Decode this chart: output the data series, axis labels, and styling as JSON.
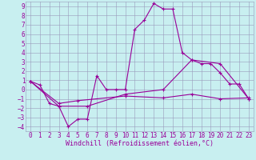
{
  "title": "",
  "xlabel": "Windchill (Refroidissement éolien,°C)",
  "bg_color": "#c8eff0",
  "grid_color": "#9999bb",
  "line_color": "#990099",
  "xlim": [
    -0.5,
    23.5
  ],
  "ylim": [
    -4.5,
    9.5
  ],
  "xticks": [
    0,
    1,
    2,
    3,
    4,
    5,
    6,
    7,
    8,
    9,
    10,
    11,
    12,
    13,
    14,
    15,
    16,
    17,
    18,
    19,
    20,
    21,
    22,
    23
  ],
  "yticks": [
    -4,
    -3,
    -2,
    -1,
    0,
    1,
    2,
    3,
    4,
    5,
    6,
    7,
    8,
    9
  ],
  "line1_x": [
    0,
    1,
    2,
    3,
    4,
    5,
    6,
    7,
    8,
    9,
    10,
    11,
    12,
    13,
    14,
    15,
    16,
    17,
    18,
    19,
    20,
    21,
    22,
    23
  ],
  "line1_y": [
    0.9,
    0.5,
    -1.5,
    -1.8,
    -4.0,
    -3.2,
    -3.2,
    1.5,
    0.0,
    0.0,
    0.0,
    6.5,
    7.5,
    9.3,
    8.7,
    8.7,
    4.0,
    3.2,
    2.8,
    2.8,
    1.8,
    0.6,
    0.6,
    -1.0
  ],
  "line2_x": [
    0,
    3,
    5,
    10,
    14,
    17,
    20,
    23
  ],
  "line2_y": [
    0.9,
    -1.5,
    -1.2,
    -0.7,
    -0.9,
    -0.5,
    -1.0,
    -0.9
  ],
  "line3_x": [
    0,
    3,
    6,
    10,
    14,
    17,
    20,
    23
  ],
  "line3_y": [
    0.9,
    -1.8,
    -1.8,
    -0.5,
    0.0,
    3.2,
    2.8,
    -1.0
  ],
  "font_family": "monospace",
  "font_size": 5.5,
  "xlabel_fontsize": 6.0,
  "linewidth": 0.8,
  "markersize": 3.5
}
